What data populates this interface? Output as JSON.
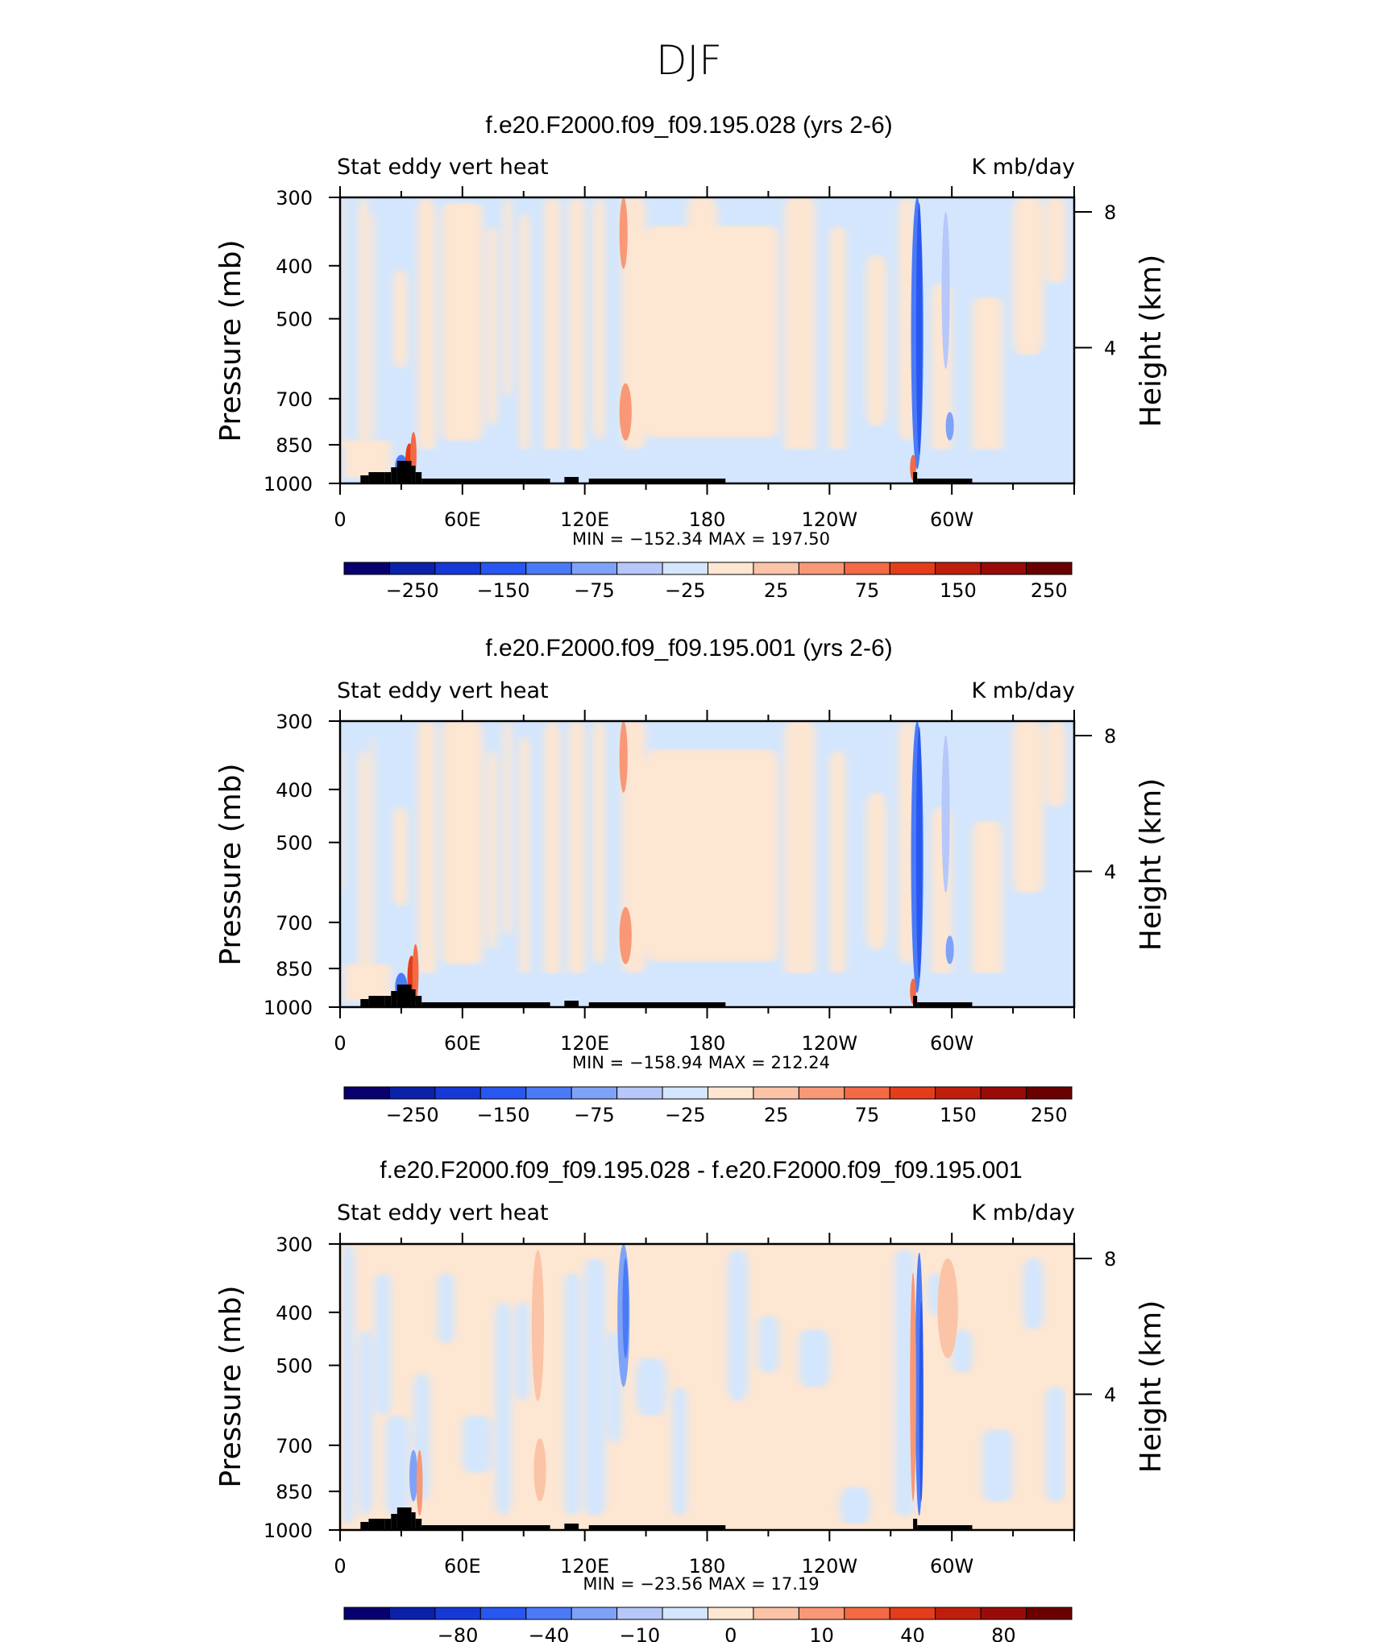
{
  "page_title": "DJF",
  "chart_data": [
    {
      "type": "heatmap",
      "title": "f.e20.F2000.f09_f09.195.028 (yrs 2-6)",
      "left_label": "Stat eddy vert heat",
      "right_label": "K mb/day",
      "ylabel": "Pressure (mb)",
      "y2label": "Height (km)",
      "yticks": [
        "300",
        "400",
        "500",
        "700",
        "850",
        "1000"
      ],
      "y2ticks": [
        "8",
        "4"
      ],
      "xticks": [
        "0",
        "60E",
        "120E",
        "180",
        "120W",
        "60W"
      ],
      "stats": "MIN = −152.34   MAX = 197.50",
      "colorbar_labels": [
        "−250",
        "−150",
        "−75",
        "−25",
        "25",
        "75",
        "150",
        "250"
      ]
    },
    {
      "type": "heatmap",
      "title": "f.e20.F2000.f09_f09.195.001 (yrs 2-6)",
      "left_label": "Stat eddy vert heat",
      "right_label": "K mb/day",
      "ylabel": "Pressure (mb)",
      "y2label": "Height (km)",
      "yticks": [
        "300",
        "400",
        "500",
        "700",
        "850",
        "1000"
      ],
      "y2ticks": [
        "8",
        "4"
      ],
      "xticks": [
        "0",
        "60E",
        "120E",
        "180",
        "120W",
        "60W"
      ],
      "stats": "MIN = −158.94   MAX = 212.24",
      "colorbar_labels": [
        "−250",
        "−150",
        "−75",
        "−25",
        "25",
        "75",
        "150",
        "250"
      ]
    },
    {
      "type": "heatmap",
      "title": "f.e20.F2000.f09_f09.195.028 - f.e20.F2000.f09_f09.195.001",
      "left_label": "Stat eddy vert heat",
      "right_label": "K mb/day",
      "ylabel": "Pressure (mb)",
      "y2label": "Height (km)",
      "yticks": [
        "300",
        "400",
        "500",
        "700",
        "850",
        "1000"
      ],
      "y2ticks": [
        "8",
        "4"
      ],
      "xticks": [
        "0",
        "60E",
        "120E",
        "180",
        "120W",
        "60W"
      ],
      "stats": "MIN = −23.56   MAX =   17.19",
      "colorbar_labels": [
        "−80",
        "−40",
        "−10",
        "0",
        "10",
        "40",
        "80"
      ]
    }
  ],
  "colors": {
    "palette": [
      "#08006e",
      "#0b21aa",
      "#1639d6",
      "#2856f0",
      "#4b7af6",
      "#7ea2f7",
      "#b6c8fa",
      "#d3e6fd",
      "#fde6d2",
      "#fbc4a6",
      "#f89876",
      "#f36a44",
      "#e33d1c",
      "#c01e0d",
      "#990b08",
      "#6b0000"
    ]
  }
}
